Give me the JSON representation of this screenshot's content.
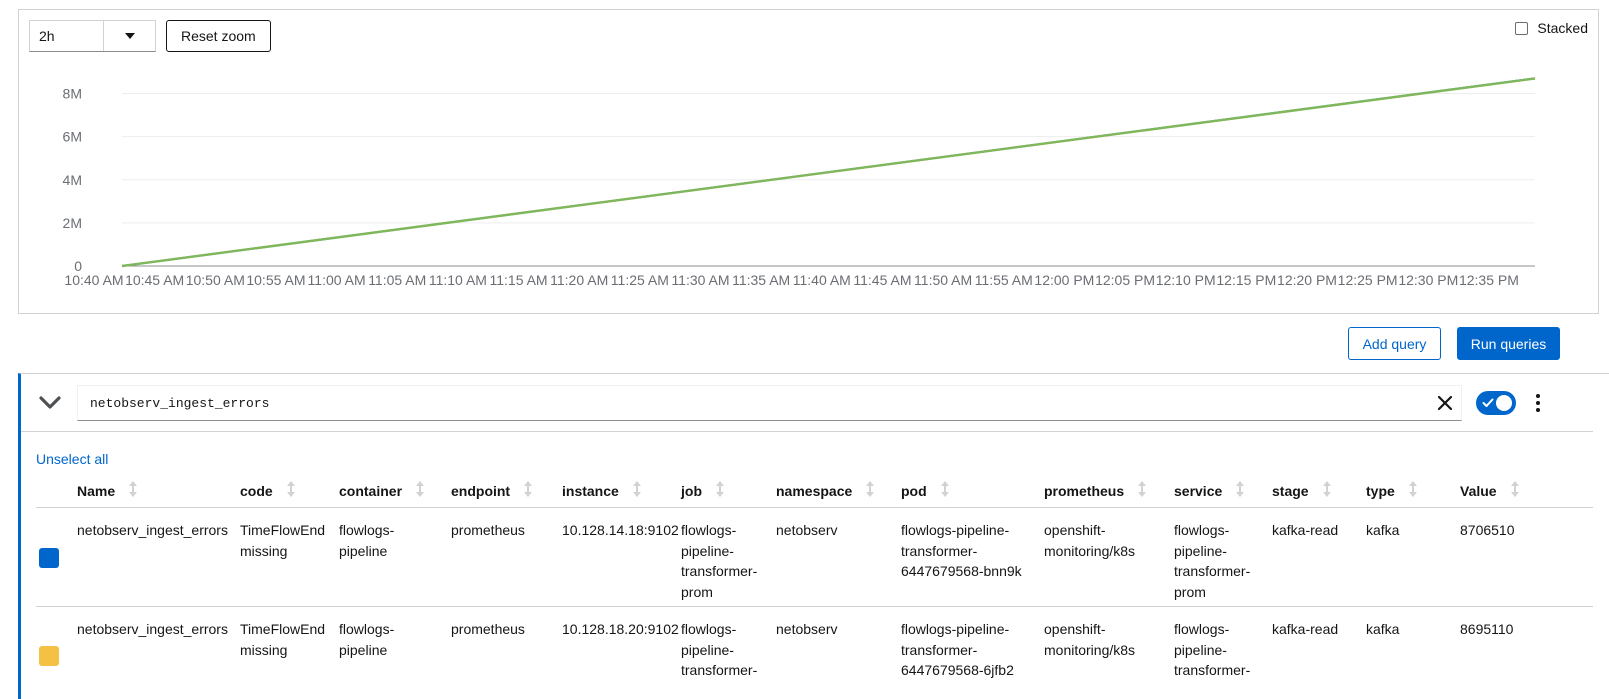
{
  "graph": {
    "span": "2h",
    "reset_zoom_label": "Reset zoom",
    "stacked_label": "Stacked",
    "y_ticks": [
      "0",
      "2M",
      "4M",
      "6M",
      "8M"
    ],
    "x_ticks": [
      "10:40 AM",
      "10:45 AM",
      "10:50 AM",
      "10:55 AM",
      "11:00 AM",
      "11:05 AM",
      "11:10 AM",
      "11:15 AM",
      "11:20 AM",
      "11:25 AM",
      "11:30 AM",
      "11:35 AM",
      "11:40 AM",
      "11:45 AM",
      "11:50 AM",
      "11:55 AM",
      "12:00 PM",
      "12:05 PM",
      "12:10 PM",
      "12:15 PM",
      "12:20 PM",
      "12:25 PM",
      "12:30 PM",
      "12:35 PM"
    ]
  },
  "chart_data": {
    "type": "line",
    "x": [
      "10:44 AM",
      "12:40 PM"
    ],
    "x_start_label": "10:40 AM",
    "ylim": [
      0,
      9000000
    ],
    "y_tick_values": [
      0,
      2000000,
      4000000,
      6000000,
      8000000
    ],
    "grid": true,
    "series": [
      {
        "name": "10.128.14.18:9102",
        "color": "#0066cc",
        "values": [
          0,
          8706510
        ]
      },
      {
        "name": "10.128.18.20:9102",
        "color": "#f4c145",
        "values": [
          0,
          8695110
        ]
      }
    ],
    "overlay_color": "#7fb75c"
  },
  "actions": {
    "add_query_label": "Add query",
    "run_queries_label": "Run queries"
  },
  "query": {
    "text": "netobserv_ingest_errors",
    "enabled": true,
    "unselect_all_label": "Unselect all"
  },
  "table": {
    "columns": [
      "Name",
      "code",
      "container",
      "endpoint",
      "instance",
      "job",
      "namespace",
      "pod",
      "prometheus",
      "service",
      "stage",
      "type",
      "Value"
    ],
    "rows": [
      {
        "color": "#0066cc",
        "name": "netobserv_ingest_errors",
        "code": [
          "TimeFlowEnd",
          "missing"
        ],
        "container": [
          "flowlogs-",
          "pipeline"
        ],
        "endpoint": "prometheus",
        "instance": "10.128.14.18:9102",
        "job": [
          "flowlogs-",
          "pipeline-",
          "transformer-",
          "prom"
        ],
        "namespace": "netobserv",
        "pod": [
          "flowlogs-pipeline-",
          "transformer-",
          "6447679568-bnn9k"
        ],
        "prometheus": [
          "openshift-",
          "monitoring/k8s"
        ],
        "service": [
          "flowlogs-",
          "pipeline-",
          "transformer-",
          "prom"
        ],
        "stage": "kafka-read",
        "type": "kafka",
        "value": "8706510"
      },
      {
        "color": "#f4c145",
        "name": "netobserv_ingest_errors",
        "code": [
          "TimeFlowEnd",
          "missing"
        ],
        "container": [
          "flowlogs-",
          "pipeline"
        ],
        "endpoint": "prometheus",
        "instance": "10.128.18.20:9102",
        "job": [
          "flowlogs-",
          "pipeline-",
          "transformer-"
        ],
        "namespace": "netobserv",
        "pod": [
          "flowlogs-pipeline-",
          "transformer-",
          "6447679568-6jfb2"
        ],
        "prometheus": [
          "openshift-",
          "monitoring/k8s"
        ],
        "service": [
          "flowlogs-",
          "pipeline-",
          "transformer-"
        ],
        "stage": "kafka-read",
        "type": "kafka",
        "value": "8695110"
      }
    ]
  }
}
